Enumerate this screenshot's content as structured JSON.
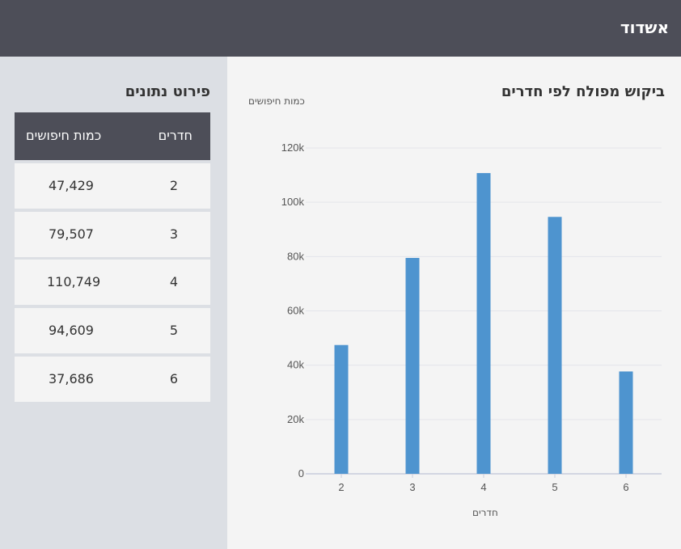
{
  "header": {
    "title": "אשדוד"
  },
  "table": {
    "title": "פירוט נתונים",
    "col_rooms": "חדרים",
    "col_count": "כמות חיפושים",
    "rows": [
      {
        "rooms": "2",
        "count": "47,429"
      },
      {
        "rooms": "3",
        "count": "79,507"
      },
      {
        "rooms": "4",
        "count": "110,749"
      },
      {
        "rooms": "5",
        "count": "94,609"
      },
      {
        "rooms": "6",
        "count": "37,686"
      }
    ]
  },
  "chart_data": {
    "type": "bar",
    "title": "ביקוש מפולח לפי חדרים",
    "xlabel": "חדרים",
    "ylabel": "כמות חיפושים",
    "categories": [
      "2",
      "3",
      "4",
      "5",
      "6"
    ],
    "values": [
      47429,
      79507,
      110749,
      94609,
      37686
    ],
    "ylim": [
      0,
      120000
    ],
    "yticks": [
      0,
      20000,
      40000,
      60000,
      80000,
      100000,
      120000
    ],
    "ytick_labels": [
      "0",
      "20k",
      "40k",
      "60k",
      "80k",
      "100k",
      "120k"
    ],
    "bar_color": "#4e94cf",
    "grid": true
  }
}
